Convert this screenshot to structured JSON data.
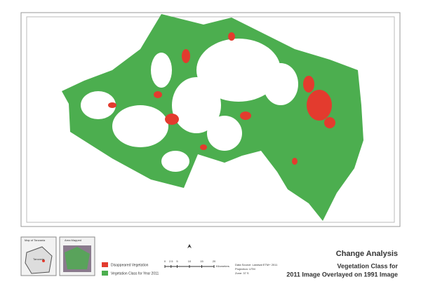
{
  "title": "Change Analysis",
  "subtitle_lines": [
    "Vegetation Class for",
    "2011 Image  Overlayed on 1991 Image"
  ],
  "legend": [
    {
      "label": "Disappeared Vegetation",
      "color": "#e33b2e"
    },
    {
      "label": "Vegetation Class for Year 2011",
      "color": "#4cae4f"
    }
  ],
  "inset_maps": [
    {
      "title": "Map of Tanzania",
      "label": "Tanzania"
    },
    {
      "title": "Area Mapped"
    }
  ],
  "scale_bar": {
    "ticks": [
      0,
      2.5,
      5,
      10,
      15,
      20
    ],
    "unit": "Kilometers"
  },
  "metadata": [
    "Data Source: Landsat ETM+ 2011",
    "Projection: UTM",
    "Zone: 37 S"
  ]
}
